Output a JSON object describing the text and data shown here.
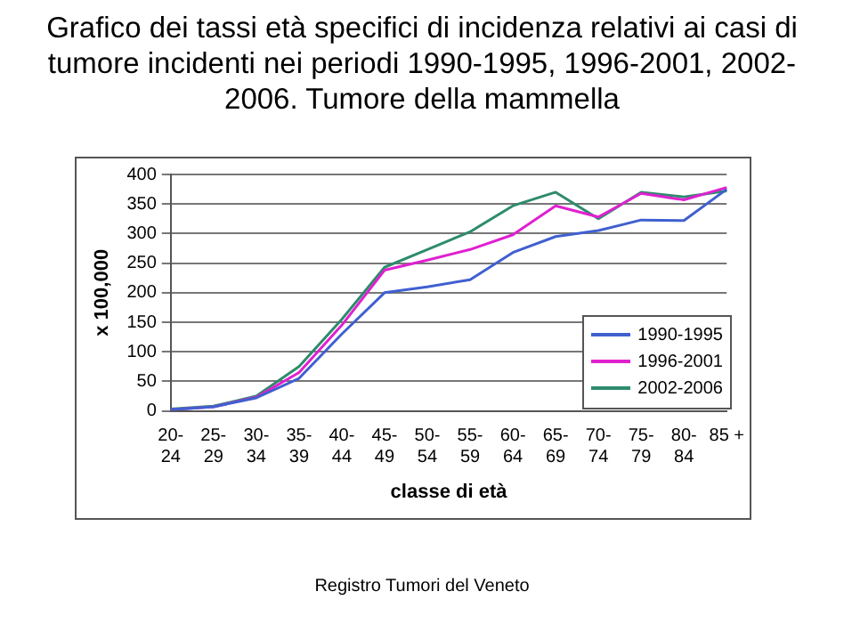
{
  "chart_data": {
    "type": "line",
    "title": "Grafico dei tassi età specifici di incidenza relativi ai casi di tumore incidenti nei periodi 1990-1995, 1996-2001, 2002-2006. Tumore della mammella",
    "xlabel": "classe di età",
    "ylabel": "x 100,000",
    "annotations": [
      "Registro Tumori del Veneto"
    ],
    "categories": [
      "20-24",
      "25-29",
      "30-34",
      "35-39",
      "40-44",
      "45-49",
      "50-54",
      "55-59",
      "60-64",
      "65-69",
      "70-74",
      "75-79",
      "80-84",
      "85 +"
    ],
    "series": [
      {
        "name": "1990-1995",
        "color": "#4060d0",
        "values": [
          2,
          7,
          22,
          55,
          130,
          200,
          210,
          222,
          268,
          295,
          305,
          323,
          322,
          375
        ]
      },
      {
        "name": "1996-2001",
        "color": "#e020d0",
        "values": [
          2,
          7,
          23,
          65,
          145,
          238,
          255,
          273,
          298,
          347,
          328,
          368,
          357,
          378
        ]
      },
      {
        "name": "2002-2006",
        "color": "#2e8b6e",
        "values": [
          3,
          8,
          25,
          75,
          155,
          243,
          273,
          303,
          347,
          370,
          325,
          370,
          362,
          372
        ]
      }
    ],
    "ylim": [
      0,
      400
    ],
    "yticks": [
      0,
      50,
      100,
      150,
      200,
      250,
      300,
      350,
      400
    ],
    "grid": "y",
    "legend": "right",
    "marker": "none",
    "line_style": "solid"
  }
}
